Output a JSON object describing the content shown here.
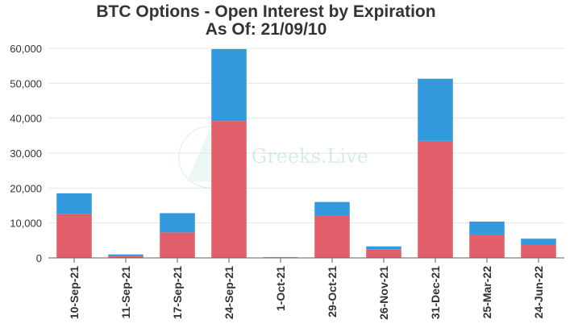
{
  "title_line1": "BTC Options - Open Interest by Expiration",
  "title_line2": "As Of: 21/09/10",
  "watermark": "Greeks.Live",
  "colors": {
    "put": "#e05f6b",
    "call": "#3399dd"
  },
  "chart_data": {
    "type": "bar",
    "stacked": true,
    "title": "BTC Options - Open Interest by Expiration",
    "subtitle": "As Of: 21/09/10",
    "categories": [
      "10-Sep-21",
      "11-Sep-21",
      "17-Sep-21",
      "24-Sep-21",
      "1-Oct-21",
      "29-Oct-21",
      "26-Nov-21",
      "31-Dec-21",
      "25-Mar-22",
      "24-Jun-22"
    ],
    "series": [
      {
        "color": "#e05f6b",
        "values": [
          12500,
          700,
          7300,
          39200,
          100,
          12100,
          2500,
          33500,
          6700,
          3800
        ]
      },
      {
        "color": "#3399dd",
        "values": [
          6000,
          300,
          5500,
          20600,
          100,
          3900,
          800,
          17800,
          3700,
          1700
        ]
      }
    ],
    "ylim": [
      0,
      60000
    ],
    "yticks": [
      0,
      10000,
      20000,
      30000,
      40000,
      50000,
      60000
    ],
    "ytick_labels": [
      "0",
      "10,000",
      "20,000",
      "30,000",
      "40,000",
      "50,000",
      "60,000"
    ],
    "grid": true
  }
}
